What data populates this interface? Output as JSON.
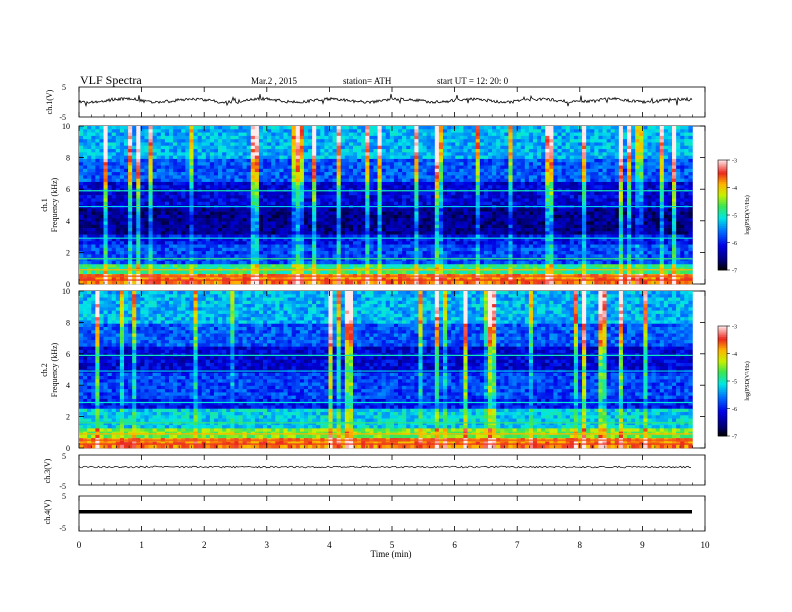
{
  "header": {
    "title": "VLF  Spectra",
    "date": "Mar.2  , 2015",
    "station": "station= ATH",
    "start": "start  UT  =    12: 20: 0"
  },
  "chart_data": [
    {
      "type": "line",
      "panel": "ch1-waveform",
      "ylabel": "ch.1(V)",
      "ylim": [
        -5,
        5
      ],
      "yticks": [
        "5",
        "-5"
      ],
      "xlim": [
        0,
        10
      ],
      "series": [
        {
          "values_approx_level": 0.0,
          "line_color": "#000000"
        }
      ]
    },
    {
      "type": "heatmap",
      "panel": "ch1-spectrogram",
      "ylabel": "ch.1\nFrequency  (kHz)",
      "ylabel_line1": "ch.1",
      "ylabel_line2": "Frequency  (kHz)",
      "ylim": [
        0,
        10
      ],
      "yticks": [
        "0",
        "2",
        "4",
        "6",
        "8",
        "10"
      ],
      "xlim": [
        0,
        10
      ],
      "colorbar": {
        "label": "log(PSD(V²/Hz)",
        "range": [
          -7,
          -3
        ],
        "ticks": [
          "-3",
          "-4",
          "-5",
          "-6",
          "-7"
        ]
      }
    },
    {
      "type": "heatmap",
      "panel": "ch2-spectrogram",
      "ylabel_line1": "ch.2",
      "ylabel_line2": "Frequency  (kHz)",
      "ylim": [
        0,
        10
      ],
      "yticks": [
        "0",
        "2",
        "4",
        "6",
        "8",
        "10"
      ],
      "xlim": [
        0,
        10
      ],
      "colorbar": {
        "label": "log(PSD(V²/Hz)",
        "range": [
          -7,
          -3
        ],
        "ticks": [
          "-3",
          "-4",
          "-5",
          "-6",
          "-7"
        ]
      }
    },
    {
      "type": "line",
      "panel": "ch3-waveform",
      "ylabel": "ch.3(V)",
      "ylim": [
        -5,
        5
      ],
      "yticks": [
        "5",
        "-5"
      ],
      "xlim": [
        0,
        10
      ]
    },
    {
      "type": "line",
      "panel": "ch4-waveform",
      "ylabel": "ch.4(V)",
      "ylim": [
        -5,
        5
      ],
      "yticks": [
        "5",
        "-5"
      ],
      "xlim": [
        0,
        10
      ]
    }
  ],
  "x_axis": {
    "label": "Time  (min)",
    "ticks": [
      "0",
      "1",
      "2",
      "3",
      "4",
      "5",
      "6",
      "7",
      "8",
      "9",
      "10"
    ],
    "range": [
      0,
      10
    ],
    "data_end": 9.8
  }
}
